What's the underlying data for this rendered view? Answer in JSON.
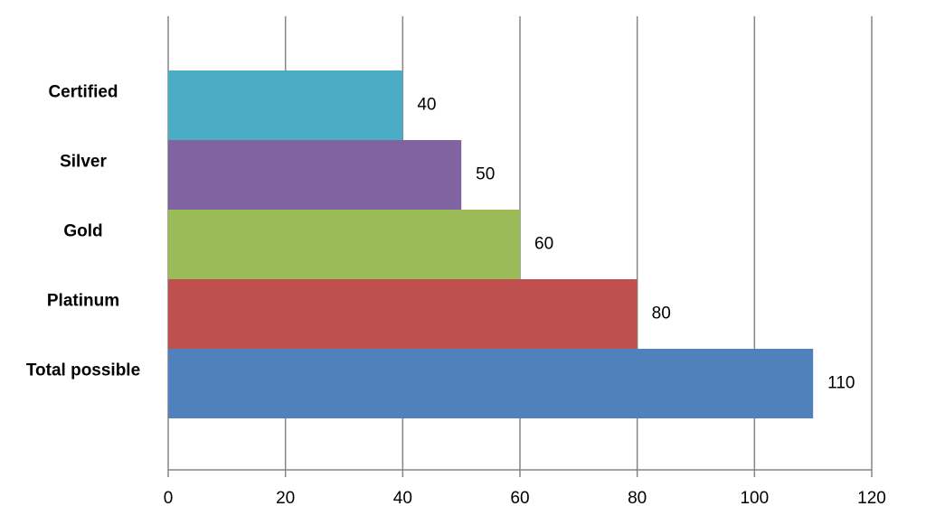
{
  "chart_data": {
    "type": "bar",
    "orientation": "horizontal",
    "categories": [
      "Certified",
      "Silver",
      "Gold",
      "Platinum",
      "Total possible"
    ],
    "values": [
      40,
      50,
      60,
      80,
      110
    ],
    "colors": [
      "#4bacc6",
      "#8064a2",
      "#9bbb59",
      "#c0504d",
      "#4f81bd"
    ],
    "xlim": [
      0,
      120
    ],
    "xticks": [
      0,
      20,
      40,
      60,
      80,
      100,
      120
    ],
    "grid": true
  }
}
